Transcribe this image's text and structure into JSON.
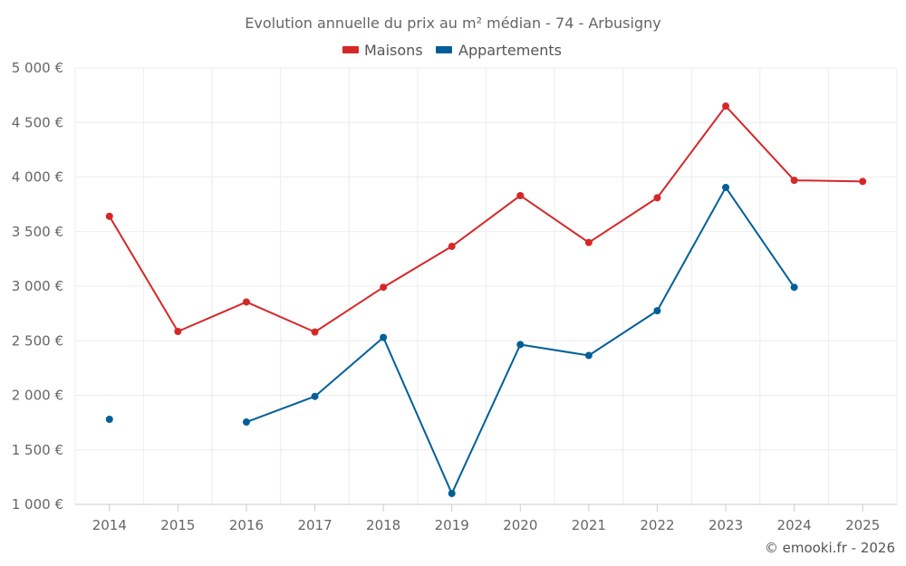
{
  "chart_data": {
    "type": "line",
    "title": "Evolution annuelle du prix au m² médian - 74 - Arbusigny",
    "categories": [
      "2014",
      "2015",
      "2016",
      "2017",
      "2018",
      "2019",
      "2020",
      "2021",
      "2022",
      "2023",
      "2024",
      "2025"
    ],
    "series": [
      {
        "name": "Maisons",
        "color": "#d62728",
        "values": [
          3640,
          2585,
          2855,
          2580,
          2990,
          3365,
          3830,
          3400,
          3810,
          4650,
          3970,
          3960
        ]
      },
      {
        "name": "Appartements",
        "color": "#005f99",
        "values": [
          1780,
          null,
          1755,
          1990,
          2530,
          1100,
          2465,
          2365,
          2775,
          3905,
          2990,
          null
        ]
      }
    ],
    "ylim": [
      1000,
      5000
    ],
    "yticks": [
      1000,
      1500,
      2000,
      2500,
      3000,
      3500,
      4000,
      4500,
      5000
    ],
    "ytick_labels": [
      "1 000 €",
      "1 500 €",
      "2 000 €",
      "2 500 €",
      "3 000 €",
      "3 500 €",
      "4 000 €",
      "4 500 €",
      "5 000 €"
    ],
    "xlabel": "",
    "ylabel": "",
    "grid": true,
    "legend_position": "top-center",
    "credit": "© emooki.fr - 2026"
  }
}
